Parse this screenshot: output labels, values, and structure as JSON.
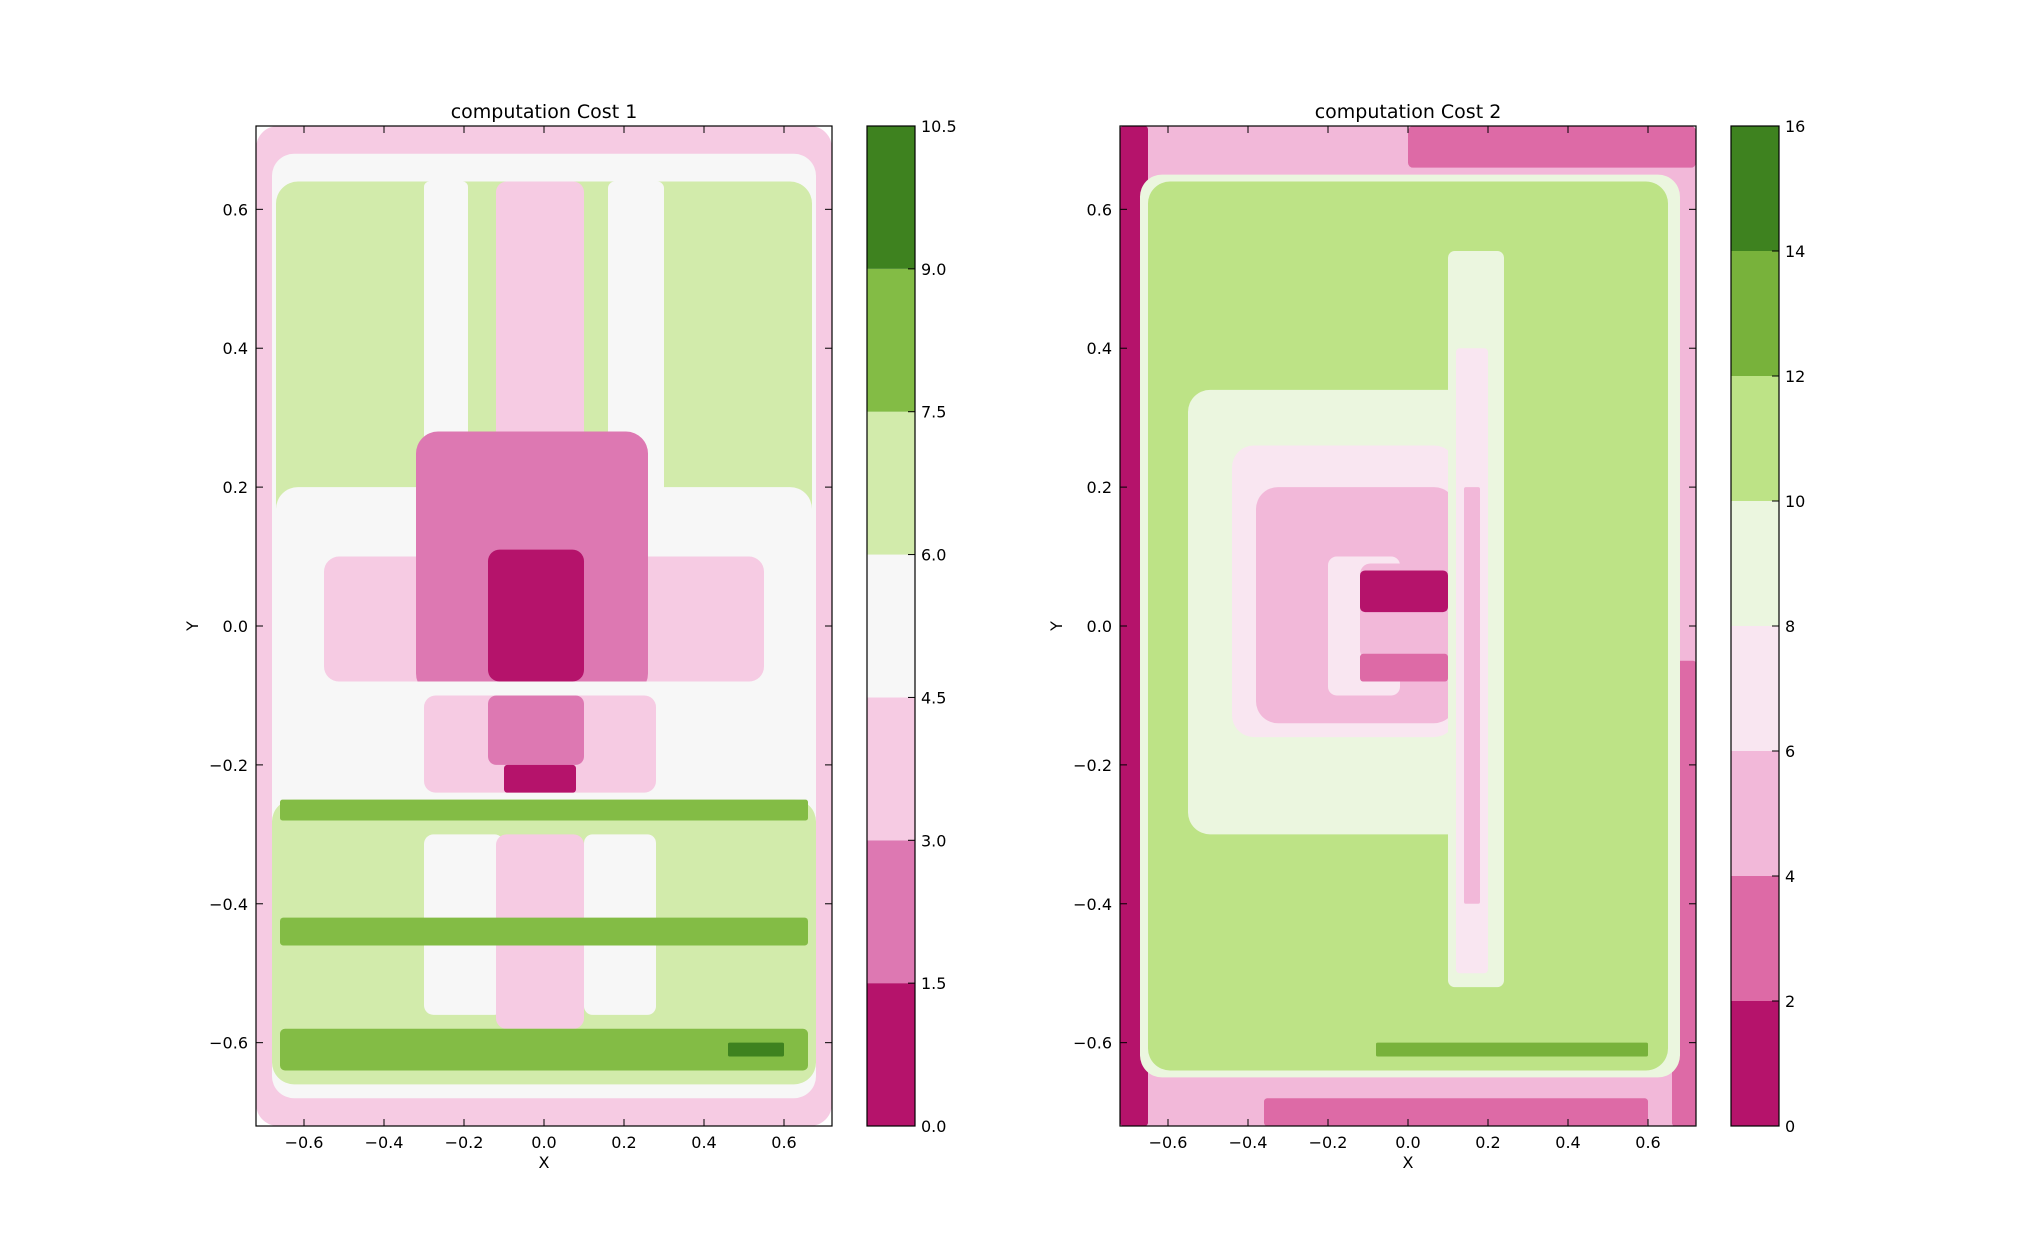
{
  "chart_data": [
    {
      "type": "contour",
      "title": "computation Cost 1",
      "xlabel": "X",
      "ylabel": "Y",
      "xlim": [
        -0.72,
        0.72
      ],
      "ylim": [
        -0.72,
        0.72
      ],
      "xticks": [
        -0.6,
        -0.4,
        -0.2,
        0.0,
        0.2,
        0.4,
        0.6
      ],
      "yticks": [
        -0.6,
        -0.4,
        -0.2,
        0.0,
        0.2,
        0.4,
        0.6
      ],
      "xtick_labels": [
        "−0.6",
        "−0.4",
        "−0.2",
        "0.0",
        "0.2",
        "0.4",
        "0.6"
      ],
      "ytick_labels": [
        "−0.6",
        "−0.4",
        "−0.2",
        "0.0",
        "0.2",
        "0.4",
        "0.6"
      ],
      "colorbar": {
        "levels": [
          0.0,
          1.5,
          3.0,
          4.5,
          6.0,
          7.5,
          9.0,
          10.5
        ],
        "labels": [
          "0.0",
          "1.5",
          "3.0",
          "4.5",
          "6.0",
          "7.5",
          "9.0",
          "10.5"
        ],
        "colors": [
          "#b5136b",
          "#dd78b2",
          "#f6cbe3",
          "#f7f7f7",
          "#d2ebab",
          "#83bc45",
          "#3e821f"
        ]
      },
      "regions": [
        {
          "x": [
            -0.72,
            0.72
          ],
          "y": [
            -0.72,
            0.72
          ],
          "level": 2
        },
        {
          "x": [
            -0.68,
            0.68
          ],
          "y": [
            -0.68,
            0.68
          ],
          "level": 3
        },
        {
          "x": [
            -0.67,
            0.67
          ],
          "y": [
            0.12,
            0.64
          ],
          "level": 4
        },
        {
          "x": [
            -0.3,
            -0.19
          ],
          "y": [
            0.12,
            0.64
          ],
          "level": 3
        },
        {
          "x": [
            -0.12,
            0.1
          ],
          "y": [
            0.12,
            0.64
          ],
          "level": 2
        },
        {
          "x": [
            0.16,
            0.3
          ],
          "y": [
            0.12,
            0.64
          ],
          "level": 3
        },
        {
          "x": [
            -0.67,
            0.67
          ],
          "y": [
            -0.1,
            0.2
          ],
          "level": 3
        },
        {
          "x": [
            -0.55,
            0.55
          ],
          "y": [
            -0.08,
            0.1
          ],
          "level": 2
        },
        {
          "x": [
            -0.32,
            0.26
          ],
          "y": [
            -0.1,
            0.28
          ],
          "level": 1
        },
        {
          "x": [
            -0.14,
            0.1
          ],
          "y": [
            -0.08,
            0.11
          ],
          "level": 0
        },
        {
          "x": [
            -0.67,
            0.67
          ],
          "y": [
            -0.24,
            -0.08
          ],
          "level": 3
        },
        {
          "x": [
            -0.3,
            0.28
          ],
          "y": [
            -0.24,
            -0.1
          ],
          "level": 2
        },
        {
          "x": [
            -0.14,
            0.1
          ],
          "y": [
            -0.2,
            -0.1
          ],
          "level": 1
        },
        {
          "x": [
            -0.1,
            0.08
          ],
          "y": [
            -0.24,
            -0.2
          ],
          "level": 0
        },
        {
          "x": [
            -0.68,
            0.68
          ],
          "y": [
            -0.66,
            -0.25
          ],
          "level": 4
        },
        {
          "x": [
            -0.3,
            -0.1
          ],
          "y": [
            -0.56,
            -0.3
          ],
          "level": 3
        },
        {
          "x": [
            -0.12,
            0.1
          ],
          "y": [
            -0.58,
            -0.3
          ],
          "level": 2
        },
        {
          "x": [
            0.1,
            0.28
          ],
          "y": [
            -0.56,
            -0.3
          ],
          "level": 3
        },
        {
          "x": [
            -0.66,
            0.66
          ],
          "y": [
            -0.28,
            -0.25
          ],
          "level": 5
        },
        {
          "x": [
            -0.66,
            0.66
          ],
          "y": [
            -0.46,
            -0.42
          ],
          "level": 5
        },
        {
          "x": [
            -0.66,
            0.66
          ],
          "y": [
            -0.64,
            -0.58
          ],
          "level": 5
        },
        {
          "x": [
            0.46,
            0.6
          ],
          "y": [
            -0.62,
            -0.6
          ],
          "level": 6
        }
      ]
    },
    {
      "type": "contour",
      "title": "computation Cost 2",
      "xlabel": "X",
      "ylabel": "Y",
      "xlim": [
        -0.72,
        0.72
      ],
      "ylim": [
        -0.72,
        0.72
      ],
      "xticks": [
        -0.6,
        -0.4,
        -0.2,
        0.0,
        0.2,
        0.4,
        0.6
      ],
      "yticks": [
        -0.6,
        -0.4,
        -0.2,
        0.0,
        0.2,
        0.4,
        0.6
      ],
      "xtick_labels": [
        "−0.6",
        "−0.4",
        "−0.2",
        "0.0",
        "0.2",
        "0.4",
        "0.6"
      ],
      "ytick_labels": [
        "−0.6",
        "−0.4",
        "−0.2",
        "0.0",
        "0.2",
        "0.4",
        "0.6"
      ],
      "colorbar": {
        "levels": [
          0,
          2,
          4,
          6,
          8,
          10,
          12,
          14,
          16
        ],
        "labels": [
          "0",
          "2",
          "4",
          "6",
          "8",
          "10",
          "12",
          "14",
          "16"
        ],
        "colors": [
          "#b5136b",
          "#dd6aa6",
          "#f2b8d9",
          "#f9e6f1",
          "#ebf6df",
          "#bde386",
          "#78b23b",
          "#3e821f"
        ]
      },
      "regions": [
        {
          "x": [
            -0.72,
            0.72
          ],
          "y": [
            -0.72,
            0.72
          ],
          "level": 2
        },
        {
          "x": [
            -0.72,
            -0.65
          ],
          "y": [
            -0.72,
            0.72
          ],
          "level": 0
        },
        {
          "x": [
            0.0,
            0.72
          ],
          "y": [
            0.66,
            0.72
          ],
          "level": 1
        },
        {
          "x": [
            0.66,
            0.72
          ],
          "y": [
            -0.72,
            -0.05
          ],
          "level": 1
        },
        {
          "x": [
            -0.36,
            0.6
          ],
          "y": [
            -0.72,
            -0.68
          ],
          "level": 1
        },
        {
          "x": [
            -0.67,
            0.68
          ],
          "y": [
            -0.65,
            0.65
          ],
          "level": 4
        },
        {
          "x": [
            -0.65,
            0.65
          ],
          "y": [
            -0.64,
            0.64
          ],
          "level": 5
        },
        {
          "x": [
            -0.55,
            0.24
          ],
          "y": [
            -0.3,
            0.34
          ],
          "level": 4
        },
        {
          "x": [
            -0.44,
            0.12
          ],
          "y": [
            -0.16,
            0.26
          ],
          "level": 3
        },
        {
          "x": [
            -0.38,
            0.12
          ],
          "y": [
            -0.14,
            0.2
          ],
          "level": 2
        },
        {
          "x": [
            -0.2,
            -0.02
          ],
          "y": [
            -0.1,
            0.1
          ],
          "level": 3
        },
        {
          "x": [
            0.1,
            0.24
          ],
          "y": [
            -0.52,
            0.54
          ],
          "level": 4
        },
        {
          "x": [
            0.12,
            0.2
          ],
          "y": [
            -0.5,
            0.4
          ],
          "level": 3
        },
        {
          "x": [
            0.14,
            0.18
          ],
          "y": [
            -0.4,
            0.2
          ],
          "level": 2
        },
        {
          "x": [
            -0.12,
            0.1
          ],
          "y": [
            -0.05,
            0.09
          ],
          "level": 2
        },
        {
          "x": [
            -0.12,
            0.1
          ],
          "y": [
            0.02,
            0.08
          ],
          "level": 0
        },
        {
          "x": [
            -0.12,
            0.1
          ],
          "y": [
            -0.08,
            -0.04
          ],
          "level": 1
        },
        {
          "x": [
            -0.08,
            0.6
          ],
          "y": [
            -0.62,
            -0.6
          ],
          "level": 6
        }
      ]
    }
  ]
}
